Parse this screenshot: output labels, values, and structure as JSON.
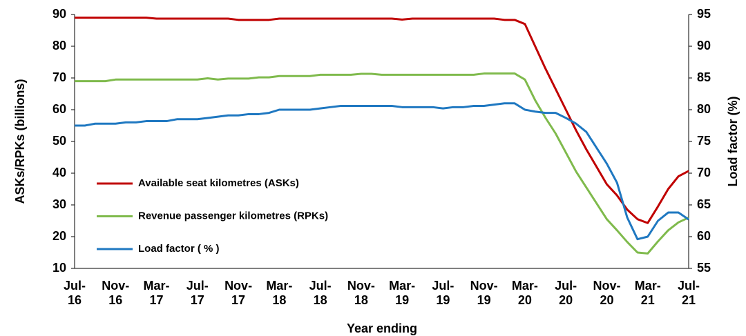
{
  "chart_data": {
    "type": "line",
    "x_label": "Year ending",
    "y_label": "ASKs/RPKs (billions)",
    "y2_label": "Load factor (%)",
    "categories": [
      "Jul-16",
      null,
      null,
      null,
      "Nov-16",
      null,
      null,
      null,
      "Mar-17",
      null,
      null,
      null,
      "Jul-17",
      null,
      null,
      null,
      "Nov-17",
      null,
      null,
      null,
      "Mar-18",
      null,
      null,
      null,
      "Jul-18",
      null,
      null,
      null,
      "Nov-18",
      null,
      null,
      null,
      "Mar-19",
      null,
      null,
      null,
      "Jul-19",
      null,
      null,
      null,
      "Nov-19",
      null,
      null,
      null,
      "Mar-20",
      null,
      null,
      null,
      "Jul-20",
      null,
      null,
      null,
      "Nov-20",
      null,
      null,
      null,
      "Mar-21",
      null,
      null,
      null,
      "Jul-21"
    ],
    "ylim": [
      10,
      90
    ],
    "yticks": [
      10,
      20,
      30,
      40,
      50,
      60,
      70,
      80,
      90
    ],
    "y2lim": [
      55,
      95
    ],
    "y2ticks": [
      55,
      60,
      65,
      70,
      75,
      80,
      85,
      90,
      95
    ],
    "grid": false,
    "series": [
      {
        "name": "Available seat kilometres (ASKs)",
        "color": "#c00000",
        "values": [
          89,
          89,
          89,
          89,
          89,
          89,
          89,
          89,
          88.7,
          88.7,
          88.7,
          88.7,
          88.7,
          88.7,
          88.7,
          88.7,
          88.3,
          88.3,
          88.3,
          88.3,
          88.7,
          88.7,
          88.7,
          88.7,
          88.7,
          88.7,
          88.7,
          88.7,
          88.7,
          88.7,
          88.7,
          88.7,
          88.4,
          88.7,
          88.7,
          88.7,
          88.7,
          88.7,
          88.7,
          88.7,
          88.7,
          88.7,
          88.3,
          88.3,
          87,
          80,
          73,
          66.5,
          60,
          53.5,
          47.5,
          42,
          36.5,
          33,
          28.5,
          25.5,
          24.3,
          29.5,
          35,
          39,
          40.7
        ]
      },
      {
        "name": "Revenue passenger kilometres (RPKs)",
        "color": "#7fba4c",
        "values": [
          69,
          69,
          69,
          69,
          69.5,
          69.5,
          69.5,
          69.5,
          69.5,
          69.5,
          69.5,
          69.5,
          69.5,
          69.9,
          69.5,
          69.8,
          69.8,
          69.8,
          70.2,
          70.2,
          70.6,
          70.6,
          70.6,
          70.6,
          71,
          71,
          71,
          71,
          71.3,
          71.3,
          71,
          71,
          71,
          71,
          71,
          71,
          71,
          71,
          71,
          71,
          71.4,
          71.4,
          71.4,
          71.4,
          69.5,
          63,
          57.5,
          52.5,
          46.5,
          40.5,
          35.5,
          30.5,
          25.5,
          22,
          18.3,
          15,
          14.7,
          18.5,
          22,
          24.5,
          26
        ]
      },
      {
        "name": "Load factor ( % )",
        "color": "#1f78c1",
        "axis": "y2",
        "values": [
          77.5,
          77.5,
          77.8,
          77.8,
          77.8,
          78,
          78,
          78.2,
          78.2,
          78.2,
          78.5,
          78.5,
          78.5,
          78.7,
          78.9,
          79.1,
          79.1,
          79.3,
          79.3,
          79.5,
          80,
          80,
          80,
          80,
          80.2,
          80.4,
          80.6,
          80.6,
          80.6,
          80.6,
          80.6,
          80.6,
          80.4,
          80.4,
          80.4,
          80.4,
          80.2,
          80.4,
          80.4,
          80.6,
          80.6,
          80.8,
          81,
          81,
          80,
          79.7,
          79.5,
          79.5,
          78.7,
          77.8,
          76.5,
          74,
          71.5,
          68.5,
          63,
          59.6,
          60,
          62.5,
          63.8,
          63.8,
          62.7
        ]
      }
    ]
  }
}
